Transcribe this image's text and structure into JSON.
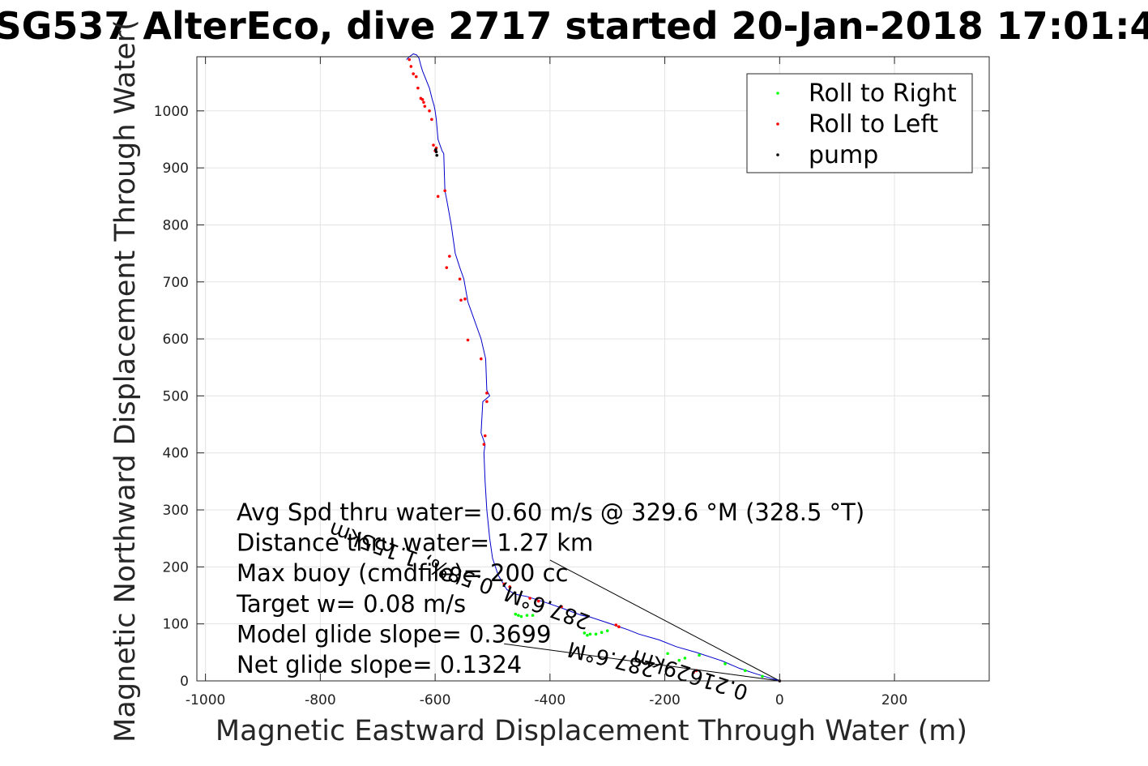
{
  "chart_data": {
    "type": "scatter",
    "title": "SG537 AlterEco, dive 2717 started 20-Jan-2018 17:01:4",
    "xlabel": "Magnetic Eastward Displacement Through Water (m)",
    "ylabel": "Magnetic Northward Displacement Through Water(",
    "xlim": [
      -1015,
      365
    ],
    "ylim": [
      0,
      1095
    ],
    "xticks": [
      -1000,
      -800,
      -600,
      -400,
      -200,
      0,
      200
    ],
    "xtick_labels": [
      "-1000",
      "-800",
      "-600",
      "-400",
      "-200",
      "0",
      "200"
    ],
    "yticks": [
      0,
      100,
      200,
      300,
      400,
      500,
      600,
      700,
      800,
      900,
      1000
    ],
    "ytick_labels": [
      "0",
      "100",
      "200",
      "300",
      "400",
      "500",
      "600",
      "700",
      "800",
      "900",
      "1000"
    ],
    "grid": true,
    "legend_placement": "top-right",
    "track": {
      "name": "",
      "color": "#0000cc",
      "x": [
        0,
        -40,
        -70,
        -100,
        -145,
        -180,
        -210,
        -245,
        -265,
        -300,
        -330,
        -345,
        -380,
        -400,
        -415,
        -440,
        -460,
        -475,
        -490,
        -500,
        -505,
        -510,
        -513,
        -515,
        -513,
        -520,
        -517,
        -505,
        -510,
        -512,
        -520,
        -543,
        -550,
        -557,
        -565,
        -572,
        -580,
        -583,
        -585,
        -588,
        -595,
        -598,
        -600,
        -602,
        -605,
        -610,
        -618,
        -622,
        -625,
        -628,
        -632,
        -638,
        -645,
        -650
      ],
      "y": [
        0,
        12,
        22,
        35,
        50,
        60,
        72,
        82,
        90,
        102,
        112,
        115,
        128,
        135,
        140,
        148,
        152,
        160,
        185,
        215,
        250,
        300,
        350,
        400,
        415,
        435,
        490,
        500,
        510,
        565,
        600,
        665,
        705,
        725,
        750,
        800,
        845,
        860,
        925,
        930,
        950,
        985,
        1000,
        1010,
        1020,
        1040,
        1060,
        1070,
        1080,
        1092,
        1098,
        1100,
        1095,
        1090
      ],
      "x_continued": [],
      "y_continued": []
    },
    "series": [
      {
        "name": "Roll to Right",
        "color": "#00ff00",
        "x": [
          -30,
          -60,
          -95,
          -140,
          -165,
          -175,
          -195,
          -300,
          -310,
          -320,
          -330,
          -335,
          -340,
          -430,
          -440,
          -450,
          -455,
          -460
        ],
        "y": [
          8,
          18,
          30,
          45,
          40,
          36,
          48,
          88,
          85,
          82,
          82,
          80,
          84,
          115,
          115,
          113,
          115,
          117
        ]
      },
      {
        "name": "Roll to Left",
        "color": "#ff0000",
        "x": [
          0,
          -150,
          -145,
          -280,
          -285,
          -380,
          -420,
          -435,
          -470,
          -480,
          -513,
          -515,
          -510,
          -510,
          -520,
          -543,
          -548,
          -555,
          -557,
          -575,
          -580,
          -583,
          -595,
          -598,
          -600,
          -603,
          -606,
          -610,
          -618,
          -620,
          -622,
          -625,
          -630,
          -633,
          -638,
          -642,
          -645
        ],
        "y": [
          0,
          15,
          18,
          95,
          98,
          130,
          140,
          145,
          165,
          170,
          430,
          415,
          505,
          490,
          565,
          598,
          670,
          668,
          705,
          745,
          725,
          860,
          850,
          935,
          930,
          940,
          985,
          1000,
          1008,
          1015,
          1020,
          1022,
          1040,
          1060,
          1065,
          1078,
          1090
        ]
      },
      {
        "name": "pump",
        "color": "#000000",
        "x": [
          0,
          -597,
          -598,
          -599
        ],
        "y": [
          0,
          922,
          928,
          932
        ]
      }
    ],
    "reference_lines": [
      {
        "x": [
          0,
          -400
        ],
        "y": [
          0,
          212
        ]
      },
      {
        "x": [
          0,
          -480
        ],
        "y": [
          0,
          65
        ]
      }
    ],
    "annotations": [
      "Avg Spd thru water=  0.60 m/s @ 329.6 °M (328.5 °T)",
      "Distance thru water=  1.27 km",
      "Max buoy (cmdfile)= 200 cc",
      "Target w= 0.08 m/s",
      "Model glide slope= 0.3699",
      "Net glide slope= 0.1324"
    ],
    "rotated_labels": [
      "287.6°M",
      "0.21629km",
      "287.6°M, 0.58%, 1.155km"
    ]
  }
}
